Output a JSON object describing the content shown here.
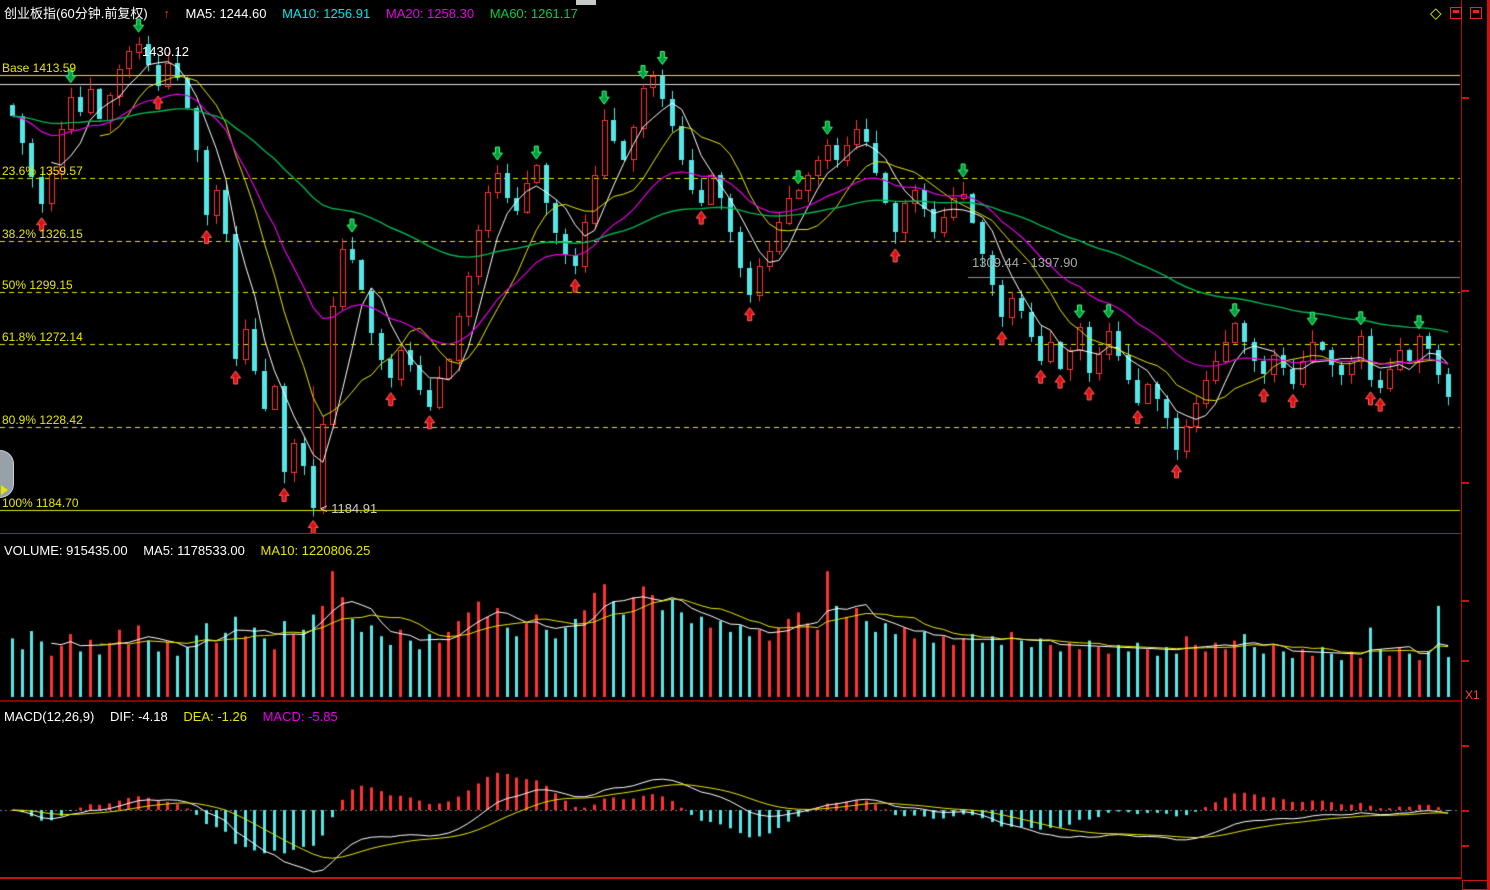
{
  "colors": {
    "background": "#000000",
    "up": "#ff3232",
    "down": "#55e6e6",
    "ma5": "#ffffff",
    "ma10": "#e6e600",
    "ma20": "#e600e6",
    "ma60": "#00b450",
    "fib": "#e6e600",
    "axis": "#cc1111",
    "buy_arrow": "#e01010",
    "sell_arrow": "#00a040"
  },
  "header": {
    "title": "创业板指(60分钟.前复权)",
    "arrow_icon": "↑",
    "ma_labels": [
      {
        "text": "MA5: 1244.60",
        "color": "#ffffff"
      },
      {
        "text": "MA10: 1256.91",
        "color": "#00e6e6"
      },
      {
        "text": "MA20: 1258.30",
        "color": "#e600e6"
      },
      {
        "text": "MA60: 1261.17",
        "color": "#00cc44"
      }
    ],
    "corner_diamond": "◇"
  },
  "volume_panel": {
    "labels": [
      {
        "text": "VOLUME: 915435.00",
        "color": "#ffffff"
      },
      {
        "text": "MA5: 1178533.00",
        "color": "#ffffff"
      },
      {
        "text": "MA10: 1220806.25",
        "color": "#e6e600"
      }
    ],
    "x1_label": "X1"
  },
  "macd_panel": {
    "labels": [
      {
        "text": "MACD(12,26,9)",
        "color": "#ffffff"
      },
      {
        "text": "DIF: -4.18",
        "color": "#ffffff"
      },
      {
        "text": "DEA: -1.26",
        "color": "#e6e600"
      },
      {
        "text": "MACD: -5.85",
        "color": "#e600e6"
      }
    ]
  },
  "annotations": {
    "peak_label": "1430.12",
    "low_label": "< 1184.91",
    "range_label": "1309.44 - 1397.90"
  },
  "chart_data": [
    {
      "type": "candlestick",
      "title": "创业板指 60分钟 前复权",
      "bars_count": 149,
      "interval": "60min",
      "y_range": [
        1180,
        1438
      ],
      "peak": 1430.12,
      "low": 1184.91,
      "low_marker_index": 31,
      "ma_values": {
        "MA5": 1244.6,
        "MA10": 1256.91,
        "MA20": 1258.3,
        "MA60": 1261.17
      },
      "fib_levels": [
        {
          "label": "Base 1413.59",
          "price": 1413.59,
          "style": "solid"
        },
        {
          "label": "23.6% 1359.57",
          "price": 1359.57,
          "style": "dashed"
        },
        {
          "label": "38.2% 1326.15",
          "price": 1326.15,
          "style": "dashed"
        },
        {
          "label": "50% 1299.15",
          "price": 1299.15,
          "style": "dashed"
        },
        {
          "label": "61.8% 1272.14",
          "price": 1272.14,
          "style": "dashed"
        },
        {
          "label": "80.9% 1228.42",
          "price": 1228.42,
          "style": "dashed"
        },
        {
          "label": "100% 1184.70",
          "price": 1184.7,
          "style": "solid"
        }
      ],
      "hlines": [
        {
          "price": 1408.9,
          "color": "#dddddd",
          "x_start": 0
        },
        {
          "price": 1307.3,
          "color": "#909090",
          "x_start": 968
        }
      ],
      "closes": [
        1392,
        1378,
        1360,
        1346,
        1362,
        1385,
        1402,
        1394,
        1406,
        1390,
        1403,
        1417,
        1426,
        1430,
        1419,
        1408,
        1420,
        1412,
        1396,
        1374,
        1340,
        1353,
        1330,
        1264,
        1280,
        1258,
        1238,
        1250,
        1205,
        1220,
        1208,
        1186,
        1230,
        1292,
        1322,
        1316,
        1300,
        1278,
        1264,
        1254,
        1269,
        1261,
        1248,
        1239,
        1254,
        1264,
        1287,
        1308,
        1332,
        1352,
        1362,
        1349,
        1342,
        1357,
        1366,
        1346,
        1330,
        1319,
        1313,
        1336,
        1361,
        1390,
        1379,
        1369,
        1386,
        1407,
        1413,
        1401,
        1387,
        1369,
        1353,
        1346,
        1361,
        1349,
        1331,
        1312,
        1298,
        1313,
        1321,
        1336,
        1349,
        1353,
        1361,
        1369,
        1377,
        1369,
        1377,
        1385,
        1378,
        1362,
        1346,
        1331,
        1346,
        1353,
        1343,
        1331,
        1339,
        1349,
        1351,
        1336,
        1319,
        1303,
        1286,
        1296,
        1289,
        1276,
        1263,
        1273,
        1259,
        1269,
        1281,
        1257,
        1267,
        1279,
        1266,
        1253,
        1241,
        1251,
        1243,
        1233,
        1216,
        1229,
        1241,
        1253,
        1263,
        1273,
        1283,
        1273,
        1263,
        1256,
        1266,
        1259,
        1251,
        1263,
        1273,
        1269,
        1261,
        1256,
        1263,
        1276,
        1253,
        1249,
        1259,
        1269,
        1263,
        1276,
        1269,
        1256,
        1244
      ],
      "buy_signal_indices": [
        3,
        15,
        20,
        23,
        28,
        31,
        39,
        43,
        58,
        71,
        76,
        91,
        102,
        106,
        108,
        111,
        116,
        120,
        129,
        132,
        140,
        141
      ],
      "sell_signal_indices": [
        6,
        13,
        35,
        50,
        54,
        61,
        65,
        67,
        81,
        84,
        98,
        110,
        113,
        126,
        134,
        139,
        145
      ]
    },
    {
      "type": "bar",
      "title": "VOLUME",
      "current": 915435.0,
      "ma5": 1178533.0,
      "ma10": 1220806.25,
      "values_millions": [
        1.35,
        1.1,
        1.52,
        1.28,
        0.95,
        1.18,
        1.45,
        1.05,
        1.32,
        0.98,
        1.25,
        1.55,
        1.2,
        1.65,
        1.3,
        1.05,
        1.28,
        0.95,
        1.15,
        1.42,
        1.7,
        1.25,
        1.48,
        1.85,
        1.4,
        1.6,
        1.35,
        1.1,
        1.75,
        1.45,
        1.55,
        1.9,
        2.1,
        2.9,
        2.3,
        1.8,
        1.5,
        1.65,
        1.4,
        1.2,
        1.55,
        1.3,
        1.1,
        1.45,
        1.25,
        1.5,
        1.75,
        1.95,
        2.2,
        1.85,
        2.05,
        1.6,
        1.4,
        1.7,
        1.9,
        1.55,
        1.35,
        1.6,
        1.8,
        2.0,
        2.4,
        2.6,
        2.2,
        1.9,
        2.3,
        2.55,
        2.35,
        2.0,
        2.25,
        1.95,
        1.7,
        1.85,
        1.6,
        1.75,
        1.5,
        1.65,
        1.4,
        1.55,
        1.3,
        1.6,
        1.8,
        1.95,
        1.7,
        1.55,
        2.9,
        2.1,
        1.85,
        2.05,
        1.75,
        1.5,
        1.7,
        1.45,
        1.6,
        1.35,
        1.5,
        1.25,
        1.4,
        1.2,
        1.35,
        1.45,
        1.25,
        1.4,
        1.2,
        1.5,
        1.3,
        1.15,
        1.35,
        1.2,
        1.05,
        1.25,
        1.1,
        1.3,
        1.15,
        1.0,
        1.2,
        1.05,
        1.25,
        1.1,
        0.95,
        1.15,
        1.0,
        1.4,
        1.2,
        1.05,
        1.25,
        1.1,
        1.3,
        1.45,
        1.15,
        1.0,
        1.2,
        1.05,
        0.9,
        1.1,
        0.95,
        1.15,
        1.0,
        0.85,
        1.05,
        0.9,
        1.6,
        1.1,
        0.95,
        1.15,
        1.0,
        0.85,
        1.05,
        2.1,
        0.92
      ]
    },
    {
      "type": "macd",
      "params": [
        12,
        26,
        9
      ],
      "dif": -4.18,
      "dea": -1.26,
      "macd": -5.85,
      "note": "DIF/DEA/histogram computed from candlestick closes with EMA(12,26,9); bar = 2*(DIF-DEA)"
    }
  ]
}
